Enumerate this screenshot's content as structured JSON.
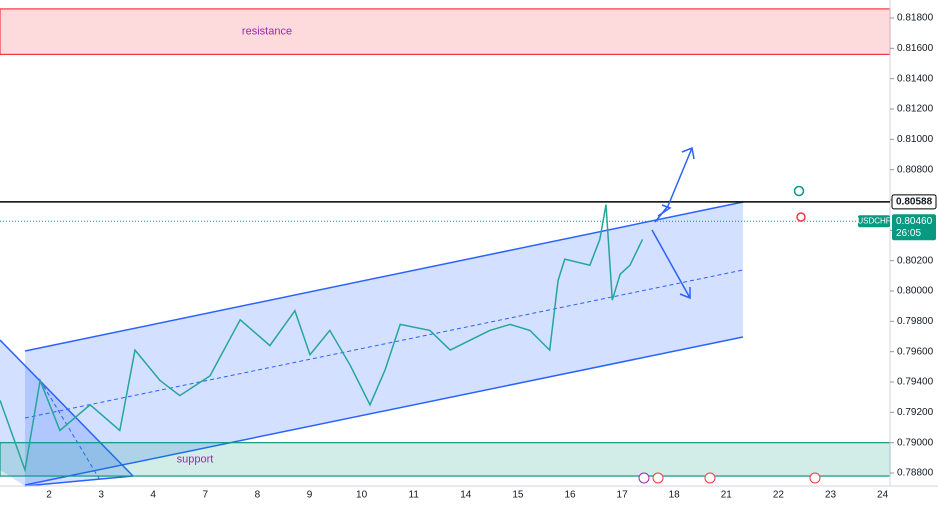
{
  "chart_data": {
    "type": "line",
    "symbol": "USDCHF",
    "countdown": "26:05",
    "categories": [
      "2",
      "3",
      "4",
      "7",
      "8",
      "9",
      "10",
      "11",
      "14",
      "15",
      "16",
      "17",
      "18",
      "21",
      "22",
      "23",
      "24"
    ],
    "xlim": [
      -0.94,
      16.14
    ],
    "ylim": [
      0.788,
      0.818
    ],
    "yticks": [
      {
        "value": 0.788,
        "label": "0.78800"
      },
      {
        "value": 0.79,
        "label": "0.79000"
      },
      {
        "value": 0.792,
        "label": "0.79200"
      },
      {
        "value": 0.794,
        "label": "0.79400"
      },
      {
        "value": 0.796,
        "label": "0.79600"
      },
      {
        "value": 0.798,
        "label": "0.79800"
      },
      {
        "value": 0.8,
        "label": "0.80000"
      },
      {
        "value": 0.802,
        "label": "0.80200"
      },
      {
        "value": 0.804,
        "label": "0.80400"
      },
      {
        "value": 0.806,
        "label": "0.80600"
      },
      {
        "value": 0.808,
        "label": "0.80800"
      },
      {
        "value": 0.81,
        "label": "0.81000"
      },
      {
        "value": 0.812,
        "label": "0.81200"
      },
      {
        "value": 0.814,
        "label": "0.81400"
      },
      {
        "value": 0.816,
        "label": "0.81600"
      },
      {
        "value": 0.818,
        "label": "0.81800"
      }
    ],
    "series": [
      {
        "name": "USDCHF",
        "color": "#26a69a",
        "x": [
          -0.94,
          -0.46,
          -0.17,
          0.21,
          0.79,
          1.36,
          1.65,
          2.13,
          2.51,
          3.09,
          3.67,
          4.24,
          4.72,
          5.01,
          5.39,
          5.78,
          6.16,
          6.45,
          6.74,
          7.31,
          7.7,
          8.46,
          8.85,
          9.23,
          9.61,
          9.77,
          9.9,
          10.38,
          10.57,
          10.69,
          10.81,
          10.96,
          11.15,
          11.39
        ],
        "values": [
          0.7928,
          0.7882,
          0.7941,
          0.7908,
          0.7925,
          0.7908,
          0.7961,
          0.7941,
          0.7931,
          0.7944,
          0.7981,
          0.7964,
          0.7987,
          0.7958,
          0.7974,
          0.7951,
          0.7925,
          0.7948,
          0.7978,
          0.7974,
          0.7961,
          0.7974,
          0.7978,
          0.7974,
          0.7961,
          0.8007,
          0.8021,
          0.8017,
          0.8034,
          0.8057,
          0.7994,
          0.8011,
          0.8017,
          0.8034
        ]
      }
    ],
    "level": {
      "value": 0.80588,
      "label": "0.80588"
    },
    "last_price": {
      "value": 0.8046,
      "label": "0.80460"
    },
    "zones": [
      {
        "name": "resistance",
        "ylim": [
          0.8156,
          0.8186
        ],
        "color": "#f23645"
      },
      {
        "name": "support",
        "ylim": [
          0.7878,
          0.79
        ],
        "color": "#089981"
      }
    ]
  }
}
